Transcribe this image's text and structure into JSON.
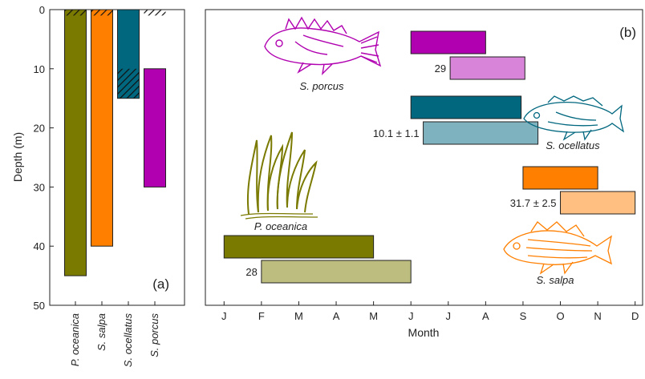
{
  "chart_data": [
    {
      "panel": "(a)",
      "type": "bar",
      "ylabel": "Depth (m)",
      "ylim": [
        0,
        50
      ],
      "y_inverted": true,
      "yticks": [
        0,
        10,
        20,
        30,
        40,
        50
      ],
      "categories": [
        "P. oceanica",
        "S. salpa",
        "S. ocellatus",
        "S. porcus"
      ],
      "bars": [
        {
          "category": "P. oceanica",
          "top": 0,
          "bottom": 45,
          "hatch_range": [
            0,
            1
          ],
          "color": "#7a7a00"
        },
        {
          "category": "S. salpa",
          "top": 0,
          "bottom": 40,
          "hatch_range": [
            0,
            1
          ],
          "color": "#ff7f00"
        },
        {
          "category": "S. ocellatus",
          "top": 0,
          "bottom": 15,
          "hatch_range": [
            10,
            15
          ],
          "color": "#00677f"
        },
        {
          "category": "S. porcus",
          "top": 10,
          "bottom": 30,
          "hatch_range": [
            0,
            1
          ],
          "hatch_outside_bar": true,
          "color": "#b000b0"
        }
      ],
      "grid": false
    },
    {
      "panel": "(b)",
      "type": "gantt",
      "xlabel": "Month",
      "months": [
        "J",
        "F",
        "M",
        "A",
        "M",
        "J",
        "J",
        "A",
        "S",
        "O",
        "N",
        "D"
      ],
      "rows": [
        {
          "species": "S. porcus",
          "kind": "dark",
          "start": 6.0,
          "end": 8.0,
          "color": "#b000b0"
        },
        {
          "species": "S. porcus",
          "kind": "light",
          "start": 7.05,
          "end": 9.05,
          "label": "29",
          "color": "#d884d8"
        },
        {
          "species": "S. ocellatus",
          "kind": "dark",
          "start": 6.0,
          "end": 8.95,
          "color": "#00677f"
        },
        {
          "species": "S. ocellatus",
          "kind": "light",
          "start": 6.33,
          "end": 9.4,
          "label": "10.1 ± 1.1",
          "color": "#7fb2bf"
        },
        {
          "species": "S. salpa",
          "kind": "dark",
          "start": 9.0,
          "end": 11.0,
          "color": "#ff7f00"
        },
        {
          "species": "S. salpa",
          "kind": "light",
          "start": 10.0,
          "end": 12.0,
          "label": "31.7 ± 2.5",
          "color": "#ffbf80"
        },
        {
          "species": "P. oceanica",
          "kind": "dark",
          "start": 1.0,
          "end": 5.0,
          "color": "#7a7a00"
        },
        {
          "species": "P. oceanica",
          "kind": "light",
          "start": 2.0,
          "end": 6.0,
          "label": "28",
          "color": "#bdbd80"
        }
      ],
      "species_labels": [
        "S. porcus",
        "S. ocellatus",
        "P. oceanica",
        "S. salpa"
      ],
      "illustrations": [
        {
          "icon": "scorpionfish-icon",
          "color": "#b000b0"
        },
        {
          "icon": "wrasse-fish-icon",
          "color": "#00677f"
        },
        {
          "icon": "seagrass-icon",
          "color": "#7a7a00"
        },
        {
          "icon": "salema-fish-icon",
          "color": "#ff7f00"
        }
      ]
    }
  ]
}
